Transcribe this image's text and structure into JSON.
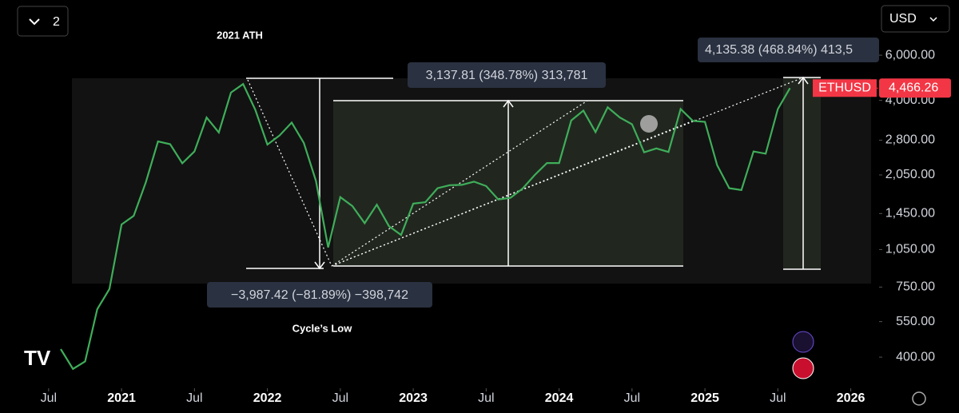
{
  "chart_data": {
    "type": "line",
    "symbol": "ETHUSD",
    "currency": "USD",
    "layout_count": "2",
    "annotations": {
      "ath": "2021 ATH",
      "low": "Cycle’s Low",
      "measure_up": "3,137.81 (348.78%) 313,781",
      "measure_down": "−3,987.42 (−81.89%) −398,742",
      "measure_now": "4,135.38 (468.84%) 413,5"
    },
    "last_price": {
      "value": 4466.26,
      "label": "4,466.26"
    },
    "log_scale": true,
    "color": "#3fae5a",
    "price_color": "#f23645",
    "xlim": [
      "2020-03",
      "2026-03"
    ],
    "xticks": [
      {
        "value": "2020-07",
        "label": "Jul"
      },
      {
        "value": "2021-01",
        "label": "2021"
      },
      {
        "value": "2021-07",
        "label": "Jul"
      },
      {
        "value": "2022-01",
        "label": "2022"
      },
      {
        "value": "2022-07",
        "label": "Jul"
      },
      {
        "value": "2023-01",
        "label": "2023"
      },
      {
        "value": "2023-07",
        "label": "Jul"
      },
      {
        "value": "2024-01",
        "label": "2024"
      },
      {
        "value": "2024-07",
        "label": "Jul"
      },
      {
        "value": "2025-01",
        "label": "2025"
      },
      {
        "value": "2025-07",
        "label": "Jul"
      },
      {
        "value": "2026-01",
        "label": "2026"
      }
    ],
    "ylim": [
      316,
      9840
    ],
    "yticks": [
      {
        "value": 400,
        "label": "400.00"
      },
      {
        "value": 550,
        "label": "550.00"
      },
      {
        "value": 750,
        "label": "750.00"
      },
      {
        "value": 1050,
        "label": "1,050.00"
      },
      {
        "value": 1450,
        "label": "1,450.00"
      },
      {
        "value": 2050,
        "label": "2,050.00"
      },
      {
        "value": 2800,
        "label": "2,800.00"
      },
      {
        "value": 4000,
        "label": "4,000.00"
      },
      {
        "value": 6000,
        "label": "6,000.00"
      }
    ],
    "x": [
      "2020-08",
      "2020-09",
      "2020-10",
      "2020-11",
      "2020-12",
      "2021-01",
      "2021-02",
      "2021-03",
      "2021-04",
      "2021-05",
      "2021-06",
      "2021-07",
      "2021-08",
      "2021-09",
      "2021-10",
      "2021-11",
      "2021-12",
      "2022-01",
      "2022-02",
      "2022-03",
      "2022-04",
      "2022-05",
      "2022-06",
      "2022-07",
      "2022-08",
      "2022-09",
      "2022-10",
      "2022-11",
      "2022-12",
      "2023-01",
      "2023-02",
      "2023-03",
      "2023-04",
      "2023-05",
      "2023-06",
      "2023-07",
      "2023-08",
      "2023-09",
      "2023-10",
      "2023-11",
      "2023-12",
      "2024-01",
      "2024-02",
      "2024-03",
      "2024-04",
      "2024-05",
      "2024-06",
      "2024-07",
      "2024-08",
      "2024-09",
      "2024-10",
      "2024-11",
      "2024-12",
      "2025-01",
      "2025-02",
      "2025-03",
      "2025-04",
      "2025-05",
      "2025-06",
      "2025-07",
      "2025-08"
    ],
    "values": [
      430,
      360,
      385,
      615,
      737,
      1315,
      1420,
      1920,
      2770,
      2700,
      2275,
      2530,
      3430,
      3000,
      4290,
      4630,
      3680,
      2690,
      2920,
      3280,
      2730,
      1940,
      1070,
      1680,
      1550,
      1330,
      1570,
      1295,
      1196,
      1585,
      1605,
      1820,
      1870,
      1875,
      1930,
      1855,
      1645,
      1670,
      1815,
      2050,
      2280,
      2280,
      3340,
      3650,
      3010,
      3760,
      3430,
      3230,
      2510,
      2600,
      2520,
      3700,
      3330,
      3300,
      2240,
      1820,
      1790,
      2530,
      2480,
      3700,
      4466
    ]
  }
}
